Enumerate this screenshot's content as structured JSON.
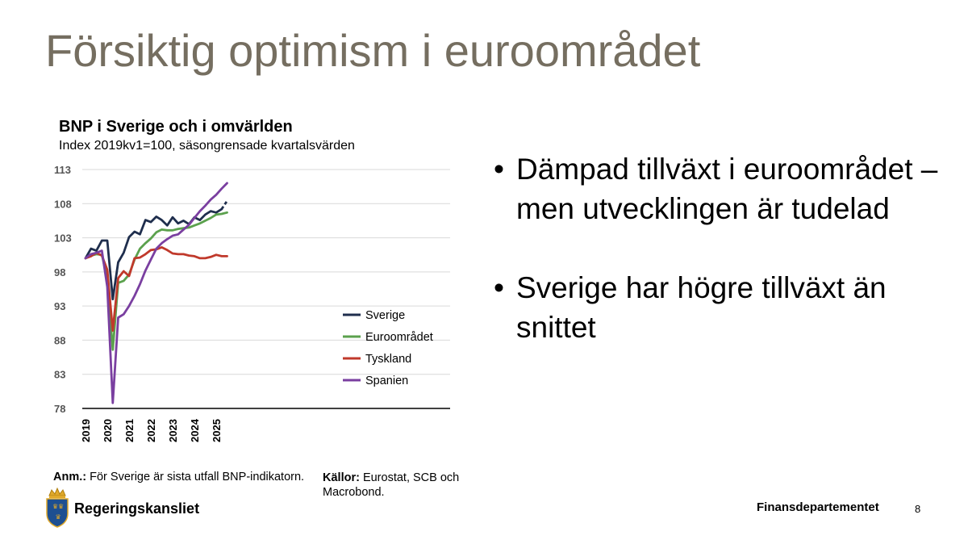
{
  "slide": {
    "title": "Försiktig optimism i euroområdet",
    "bullets": [
      "Dämpad tillväxt i euroområdet – men utvecklingen är tudelad",
      "Sverige har högre tillväxt än snittet"
    ],
    "note_label": "Anm.:",
    "note_text": " För Sverige är sista utfall BNP-indikatorn.",
    "sources_label": "Källor:",
    "sources_text": " Eurostat, SCB och Macrobond.",
    "logo_text": "Regeringskansliet",
    "department": "Finansdepartementet",
    "page_number": "8"
  },
  "chart_data": {
    "type": "line",
    "title": "BNP i Sverige och i omvärlden",
    "subtitle": "Index 2019kv1=100, säsongrensade kvartalsvärden",
    "xlabel": "",
    "ylabel": "",
    "ylim": [
      78,
      113
    ],
    "y_ticks": [
      "78",
      "83",
      "88",
      "93",
      "98",
      "103",
      "108",
      "113"
    ],
    "x_tick_labels": [
      "2019",
      "2020",
      "2021",
      "2022",
      "2023",
      "2024",
      "2025"
    ],
    "x_start_year": 2019,
    "grid": true,
    "legend_position": "bottom-right",
    "series": [
      {
        "name": "Sverige",
        "color": "#1f2e4d",
        "last_segment_dashed": true,
        "values": [
          100,
          101.4,
          101.1,
          102.6,
          102.6,
          94.0,
          99.4,
          100.8,
          103.1,
          103.9,
          103.5,
          105.6,
          105.3,
          106.1,
          105.6,
          104.8,
          106.0,
          105.1,
          105.5,
          105.0,
          106.0,
          105.6,
          106.4,
          106.9,
          106.7,
          107.2,
          108.4
        ]
      },
      {
        "name": "Euroområdet",
        "color": "#5ba14d",
        "last_segment_dashed": false,
        "values": [
          100,
          100.4,
          100.6,
          100.5,
          97.0,
          86.6,
          96.4,
          96.7,
          97.6,
          99.8,
          101.4,
          102.2,
          102.9,
          103.8,
          104.2,
          104.1,
          104.1,
          104.3,
          104.4,
          104.5,
          104.8,
          105.1,
          105.5,
          105.9,
          106.4,
          106.5,
          106.7
        ]
      },
      {
        "name": "Tyskland",
        "color": "#c0392b",
        "last_segment_dashed": false,
        "values": [
          100,
          100.3,
          100.8,
          100.4,
          98.3,
          89.4,
          97.1,
          98.1,
          97.4,
          100.0,
          100.1,
          100.6,
          101.2,
          101.3,
          101.6,
          101.2,
          100.7,
          100.6,
          100.6,
          100.4,
          100.3,
          100.0,
          100.0,
          100.2,
          100.5,
          100.3,
          100.3
        ]
      },
      {
        "name": "Spanien",
        "color": "#7a3fa0",
        "last_segment_dashed": false,
        "values": [
          100,
          100.6,
          100.8,
          101.1,
          95.8,
          78.8,
          91.3,
          91.8,
          93.0,
          94.5,
          96.2,
          98.2,
          99.8,
          101.4,
          102.2,
          102.8,
          103.3,
          103.5,
          104.2,
          104.9,
          105.9,
          106.9,
          107.7,
          108.6,
          109.3,
          110.2,
          111.0
        ]
      }
    ]
  }
}
